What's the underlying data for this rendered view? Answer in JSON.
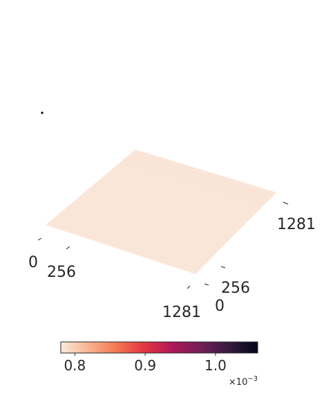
{
  "chart_data": {
    "type": "surface",
    "description_axes": {
      "x_ticks": [
        "0",
        "256",
        "1281"
      ],
      "y_ticks": [
        "0",
        "256",
        "1281"
      ]
    },
    "z_level": 0.00078,
    "colorbar": {
      "colormap": "rocket_r",
      "range": [
        0.00078,
        0.00106
      ],
      "ticks": [
        "0.8",
        "0.9",
        "1.0"
      ],
      "tick_values": [
        0.0008,
        0.0009,
        0.001
      ],
      "offset_text_base": "×10",
      "offset_text_exp": "−3"
    },
    "colors": {
      "surface": "#fae6d9",
      "surface_stripe": "#f8e0d0",
      "cmap_stops": [
        "#faebdd",
        "#f6b48f",
        "#f37651",
        "#e13342",
        "#ad1759",
        "#701f57",
        "#35193e",
        "#03051a"
      ]
    }
  }
}
